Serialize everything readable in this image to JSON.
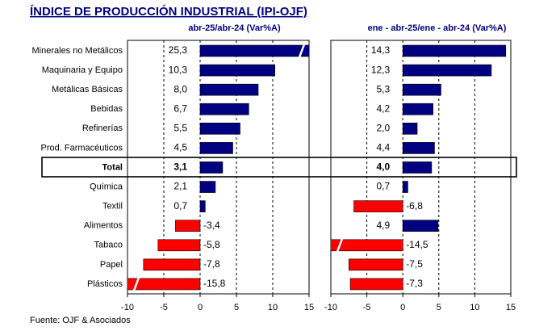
{
  "title": "ÍNDICE DE PRODUCCIÓN INDUSTRIAL (IPI-OJF)",
  "source": "Fuente: OJF & Asociados",
  "chart_data": [
    {
      "type": "bar",
      "orientation": "horizontal",
      "subtitle": "abr-25/abr-24  (Var%A)",
      "categories": [
        "Minerales no Metálicos",
        "Maquinaria y Equipo",
        "Metálicas Básicas",
        "Bebidas",
        "Refinerías",
        "Prod. Farmacéuticos",
        "Total",
        "Química",
        "Textil",
        "Alimentos",
        "Tabaco",
        "Papel",
        "Plásticos"
      ],
      "values": [
        25.3,
        10.3,
        8.0,
        6.7,
        5.5,
        4.5,
        3.1,
        2.1,
        0.7,
        -3.4,
        -5.8,
        -7.8,
        -15.8
      ],
      "value_labels": [
        "25,3",
        "10,3",
        "8,0",
        "6,7",
        "5,5",
        "4,5",
        "3,1",
        "2,1",
        "0,7",
        "-3,4",
        "-5,8",
        "-7,8",
        "-15,8"
      ],
      "positive_color": "#000080",
      "negative_color": "#ff0000",
      "xlim": [
        -10,
        15
      ],
      "xticks": [
        -10,
        -5,
        0,
        5,
        10,
        15
      ],
      "grid": true
    },
    {
      "type": "bar",
      "orientation": "horizontal",
      "subtitle": "ene - abr-25/ene - abr-24  (Var%A)",
      "values": [
        14.3,
        12.3,
        5.3,
        4.2,
        2.0,
        4.4,
        4.0,
        0.7,
        -6.8,
        4.9,
        -14.5,
        -7.5,
        -7.3
      ],
      "value_labels": [
        "14,3",
        "12,3",
        "5,3",
        "4,2",
        "2,0",
        "4,4",
        "4,0",
        "0,7",
        "-6,8",
        "4,9",
        "-14,5",
        "-7,5",
        "-7,3"
      ],
      "positive_color": "#000080",
      "negative_color": "#ff0000",
      "xlim": [
        -10,
        15
      ],
      "xticks": [
        -10,
        -5,
        0,
        5,
        10,
        15
      ],
      "grid": true
    }
  ]
}
